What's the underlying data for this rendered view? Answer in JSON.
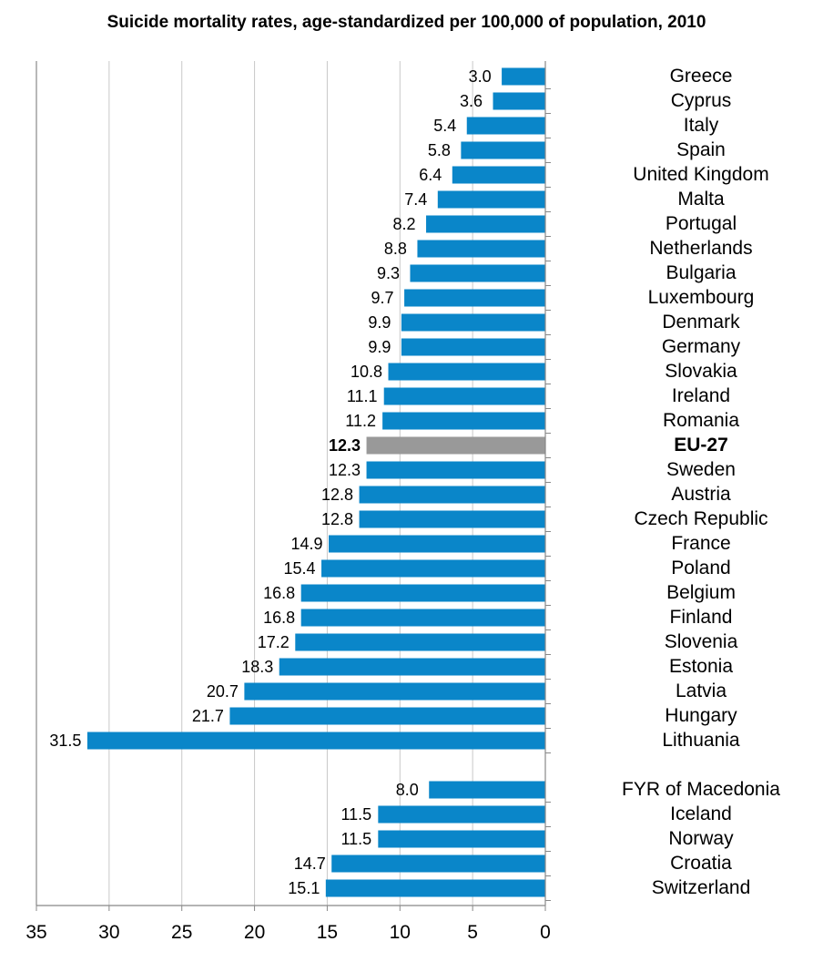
{
  "chart_data": {
    "type": "bar",
    "orientation": "horizontal",
    "title": "Suicide mortality rates, age-standardized per 100,000 of population, 2010",
    "xlabel": "",
    "ylabel": "",
    "xlim": [
      0,
      35
    ],
    "x_axis_reversed": true,
    "x_ticks": [
      "35",
      "30",
      "25",
      "20",
      "15",
      "10",
      "5",
      "0"
    ],
    "grid": "vertical",
    "bar_color": "#0a86c9",
    "highlight_color": "#999999",
    "groups": [
      {
        "categories": [
          "Greece",
          "Cyprus",
          "Italy",
          "Spain",
          "United Kingdom",
          "Malta",
          "Portugal",
          "Netherlands",
          "Bulgaria",
          "Luxembourg",
          "Denmark",
          "Germany",
          "Slovakia",
          "Ireland",
          "Romania",
          "EU-27",
          "Sweden",
          "Austria",
          "Czech Republic",
          "France",
          "Poland",
          "Belgium",
          "Finland",
          "Slovenia",
          "Estonia",
          "Latvia",
          "Hungary",
          "Lithuania"
        ],
        "values": [
          3.0,
          3.6,
          5.4,
          5.8,
          6.4,
          7.4,
          8.2,
          8.8,
          9.3,
          9.7,
          9.9,
          9.9,
          10.8,
          11.1,
          11.2,
          12.3,
          12.3,
          12.8,
          12.8,
          14.9,
          15.4,
          16.8,
          16.8,
          17.2,
          18.3,
          20.7,
          21.7,
          31.5
        ],
        "value_labels": [
          "3.0",
          "3.6",
          "5.4",
          "5.8",
          "6.4",
          "7.4",
          "8.2",
          "8.8",
          "9.3",
          "9.7",
          "9.9",
          "9.9",
          "10.8",
          "11.1",
          "11.2",
          "12.3",
          "12.3",
          "12.8",
          "12.8",
          "14.9",
          "15.4",
          "16.8",
          "16.8",
          "17.2",
          "18.3",
          "20.7",
          "21.7",
          "31.5"
        ],
        "highlight_index": 15
      },
      {
        "categories": [
          "FYR of Macedonia",
          "Iceland",
          "Norway",
          "Croatia",
          "Switzerland"
        ],
        "values": [
          8.0,
          11.5,
          11.5,
          14.7,
          15.1
        ],
        "value_labels": [
          "8.0",
          "11.5",
          "11.5",
          "14.7",
          "15.1"
        ]
      }
    ]
  }
}
